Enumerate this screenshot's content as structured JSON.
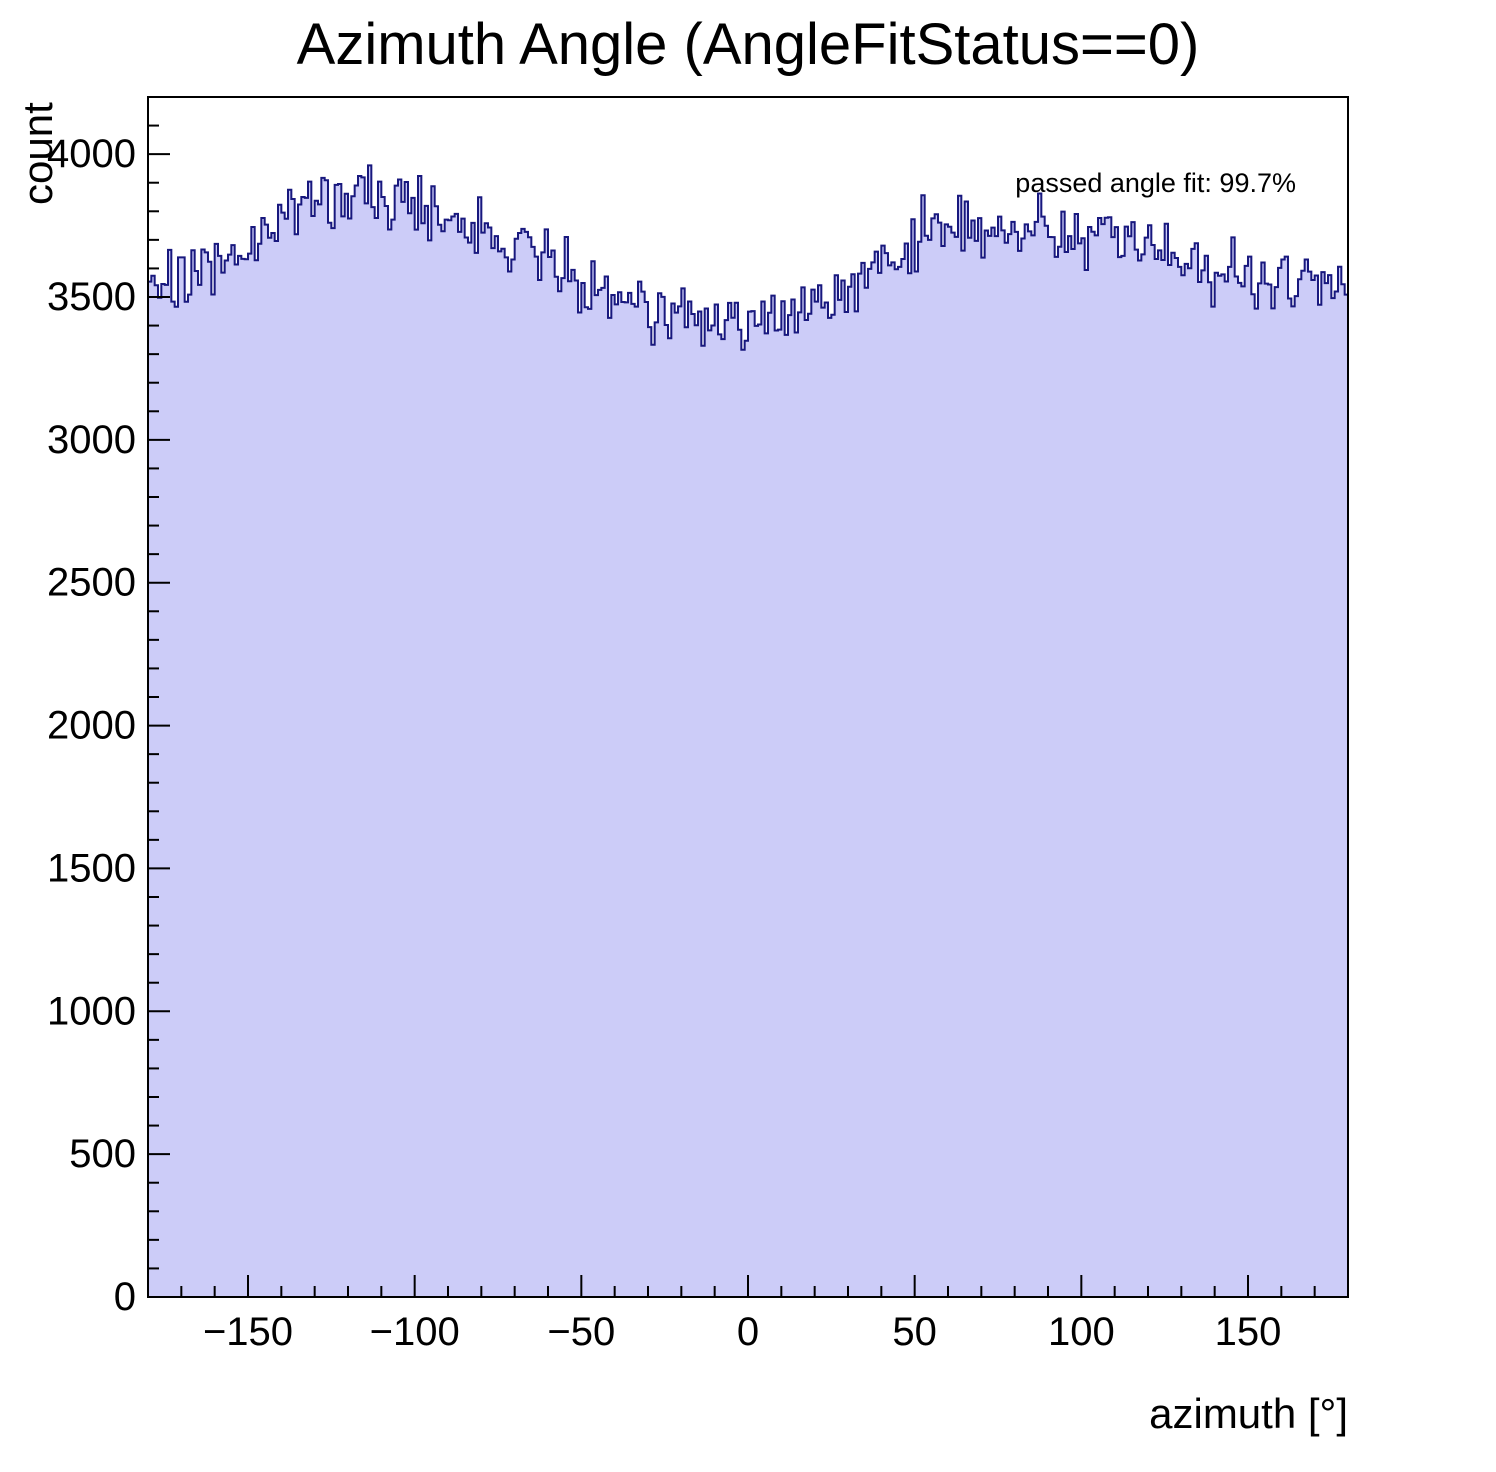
{
  "page": {
    "background": "#ffffff"
  },
  "chart_data": {
    "type": "bar",
    "style": "histogram-step-filled",
    "title": "Azimuth Angle (AngleFitStatus==0)",
    "xlabel": "azimuth [°]",
    "ylabel": "count",
    "annotation": "passed angle fit: 99.7%",
    "xlim": [
      -180,
      180
    ],
    "ylim": [
      0,
      4200
    ],
    "x_major_ticks": [
      -150,
      -100,
      -50,
      0,
      50,
      100,
      150
    ],
    "x_minor_step": 10,
    "y_major_ticks": [
      0,
      500,
      1000,
      1500,
      2000,
      2500,
      3000,
      3500,
      4000
    ],
    "y_minor_step": 100,
    "bins": 360,
    "trend_x": [
      -180,
      -175,
      -170,
      -165,
      -160,
      -155,
      -150,
      -145,
      -140,
      -135,
      -130,
      -125,
      -120,
      -115,
      -110,
      -105,
      -100,
      -95,
      -90,
      -85,
      -80,
      -75,
      -70,
      -65,
      -60,
      -55,
      -50,
      -45,
      -40,
      -35,
      -30,
      -25,
      -20,
      -15,
      -10,
      -5,
      0,
      5,
      10,
      15,
      20,
      25,
      30,
      35,
      40,
      45,
      50,
      55,
      60,
      65,
      70,
      75,
      80,
      85,
      90,
      95,
      100,
      105,
      110,
      115,
      120,
      125,
      130,
      135,
      140,
      145,
      150,
      155,
      160,
      165,
      170,
      175,
      180
    ],
    "trend_y": [
      3550,
      3570,
      3560,
      3580,
      3600,
      3650,
      3700,
      3730,
      3760,
      3790,
      3810,
      3830,
      3850,
      3870,
      3860,
      3850,
      3820,
      3800,
      3780,
      3750,
      3730,
      3700,
      3680,
      3650,
      3620,
      3580,
      3560,
      3540,
      3520,
      3500,
      3480,
      3450,
      3440,
      3420,
      3400,
      3410,
      3420,
      3430,
      3440,
      3460,
      3480,
      3510,
      3540,
      3570,
      3610,
      3650,
      3700,
      3720,
      3740,
      3760,
      3760,
      3760,
      3750,
      3750,
      3740,
      3740,
      3730,
      3720,
      3700,
      3680,
      3660,
      3650,
      3640,
      3620,
      3600,
      3590,
      3570,
      3560,
      3550,
      3540,
      3530,
      3520,
      3510
    ],
    "noise_sigma": 52,
    "noise_seed": 20,
    "fill_color": "#ccccf8",
    "line_color": "#18187e",
    "axis_color": "#000000",
    "legend_position": "none",
    "grid": false
  }
}
